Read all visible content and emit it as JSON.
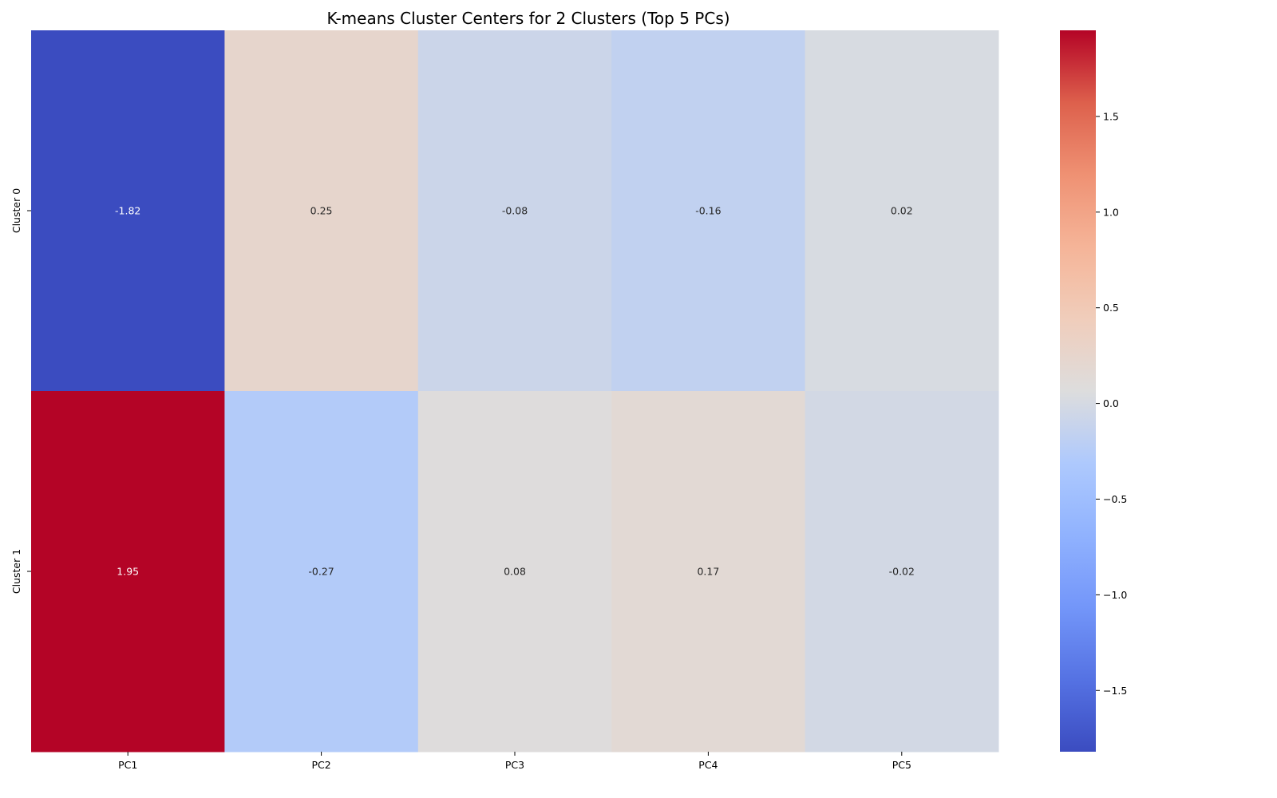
{
  "chart_data": {
    "type": "heatmap",
    "title": "K-means Cluster Centers for 2 Clusters (Top 5 PCs)",
    "x_categories": [
      "PC1",
      "PC2",
      "PC3",
      "PC4",
      "PC5"
    ],
    "y_categories": [
      "Cluster 0",
      "Cluster 1"
    ],
    "values": [
      [
        -1.82,
        0.25,
        -0.08,
        -0.16,
        0.02
      ],
      [
        1.95,
        -0.27,
        0.08,
        0.17,
        -0.02
      ]
    ],
    "cell_labels": [
      [
        "-1.82",
        "0.25",
        "-0.08",
        "-0.16",
        "0.02"
      ],
      [
        "1.95",
        "-0.27",
        "0.08",
        "0.17",
        "-0.02"
      ]
    ],
    "colormap": "coolwarm",
    "vmin": -1.82,
    "vmax": 1.95,
    "colorbar": {
      "ticks": [
        -1.5,
        -1.0,
        -0.5,
        0.0,
        0.5,
        1.0,
        1.5
      ],
      "tick_labels": [
        "−1.5",
        "−1.0",
        "−0.5",
        "0.0",
        "0.5",
        "1.0",
        "1.5"
      ],
      "placement": "right"
    },
    "colors": {
      "low": "#3b4cc0",
      "mid": "#dddddd",
      "high": "#b40426"
    }
  }
}
